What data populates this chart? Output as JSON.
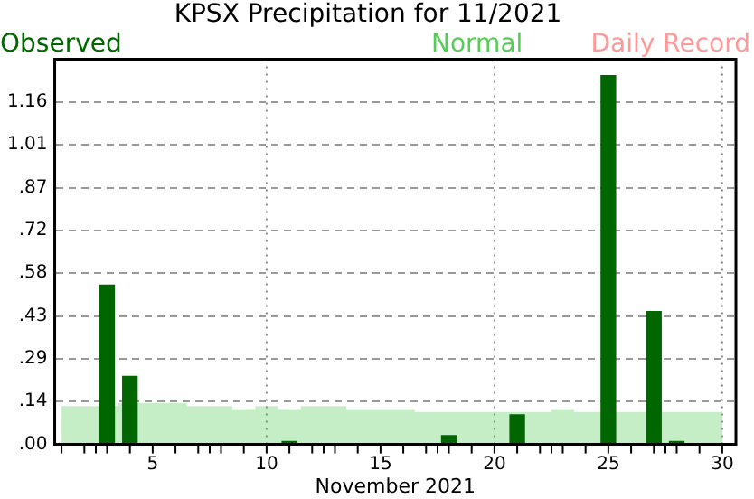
{
  "chart_data": {
    "type": "bar",
    "title": "KPSX Precipitation for 11/2021",
    "xlabel": "November 2021",
    "x": [
      1,
      2,
      3,
      4,
      5,
      6,
      7,
      8,
      9,
      10,
      11,
      12,
      13,
      14,
      15,
      16,
      17,
      18,
      19,
      20,
      21,
      22,
      23,
      24,
      25,
      26,
      27,
      28,
      29,
      30
    ],
    "series": [
      {
        "name": "Observed",
        "color": "#006600",
        "values": [
          null,
          null,
          0.54,
          0.23,
          null,
          null,
          null,
          null,
          null,
          null,
          0.01,
          null,
          null,
          null,
          null,
          null,
          null,
          0.03,
          null,
          null,
          0.1,
          null,
          null,
          null,
          1.25,
          null,
          0.45,
          0.01,
          null,
          null
        ]
      },
      {
        "name": "Normal",
        "type": "area",
        "color": "#55cc55",
        "values": [
          0.13,
          0.13,
          null,
          null,
          0.14,
          0.14,
          0.13,
          0.13,
          0.12,
          0.13,
          0.12,
          0.13,
          0.13,
          0.12,
          0.12,
          0.12,
          0.11,
          0.11,
          0.11,
          0.11,
          0.11,
          0.11,
          0.12,
          0.11,
          null,
          0.11,
          null,
          0.11,
          0.11,
          0.11
        ]
      },
      {
        "name": "Daily Record",
        "type": "line",
        "color": "#ff9999",
        "values": [
          null,
          null,
          null,
          null,
          null,
          null,
          null,
          null,
          null,
          null,
          null,
          null,
          null,
          null,
          null,
          null,
          null,
          null,
          null,
          null,
          null,
          null,
          null,
          null,
          null,
          null,
          null,
          null,
          null,
          null
        ]
      }
    ],
    "xlim": [
      0.7,
      30.6
    ],
    "xticks": [
      5,
      10,
      15,
      20,
      25,
      30
    ],
    "ylim": [
      0,
      1.305
    ],
    "yticks": [
      {
        "value": 0,
        "label": ".00"
      },
      {
        "value": 0.145,
        "label": ".14"
      },
      {
        "value": 0.29,
        "label": ".29"
      },
      {
        "value": 0.435,
        "label": ".43"
      },
      {
        "value": 0.58,
        "label": ".58"
      },
      {
        "value": 0.725,
        "label": ".72"
      },
      {
        "value": 0.87,
        "label": ".87"
      },
      {
        "value": 1.015,
        "label": "1.01"
      },
      {
        "value": 1.16,
        "label": "1.16"
      }
    ],
    "grid": "y",
    "legend": "top",
    "ref_lines": [
      {
        "axis": "x",
        "value": 10,
        "color": "#888888",
        "line_style": "dotted"
      },
      {
        "axis": "x",
        "value": 20,
        "color": "#888888",
        "line_style": "dotted"
      },
      {
        "axis": "x",
        "value": 30,
        "color": "#888888",
        "line_style": "dotted"
      }
    ]
  }
}
